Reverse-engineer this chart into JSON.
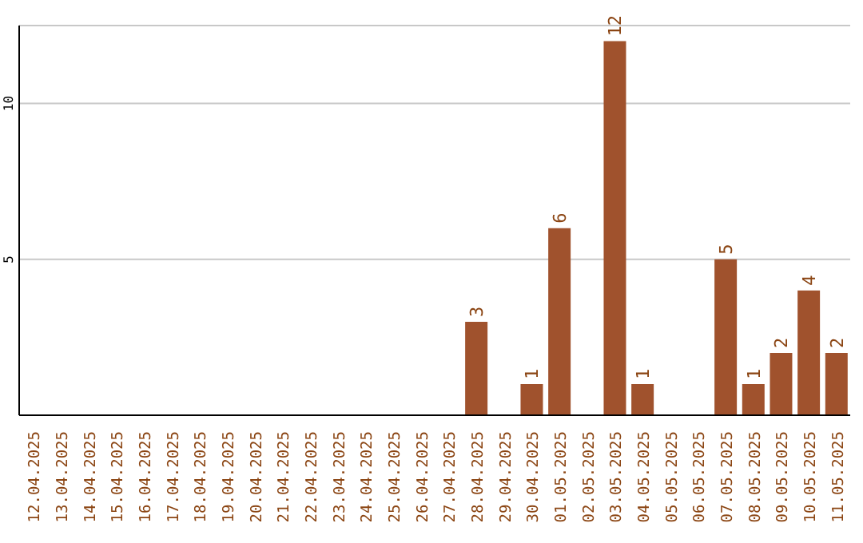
{
  "chart_data": {
    "type": "bar",
    "categories": [
      "12.04.2025",
      "13.04.2025",
      "14.04.2025",
      "15.04.2025",
      "16.04.2025",
      "17.04.2025",
      "18.04.2025",
      "19.04.2025",
      "20.04.2025",
      "21.04.2025",
      "22.04.2025",
      "23.04.2025",
      "24.04.2025",
      "25.04.2025",
      "26.04.2025",
      "27.04.2025",
      "28.04.2025",
      "29.04.2025",
      "30.04.2025",
      "01.05.2025",
      "02.05.2025",
      "03.05.2025",
      "04.05.2025",
      "05.05.2025",
      "06.05.2025",
      "07.05.2025",
      "08.05.2025",
      "09.05.2025",
      "10.05.2025",
      "11.05.2025"
    ],
    "values": [
      0,
      0,
      0,
      0,
      0,
      0,
      0,
      0,
      0,
      0,
      0,
      0,
      0,
      0,
      0,
      0,
      3,
      0,
      1,
      6,
      0,
      12,
      1,
      0,
      0,
      5,
      1,
      2,
      4,
      2
    ],
    "value_labels": [
      null,
      null,
      null,
      null,
      null,
      null,
      null,
      null,
      null,
      null,
      null,
      null,
      null,
      null,
      null,
      null,
      "3",
      null,
      "1",
      "6",
      null,
      "12",
      "1",
      null,
      null,
      "5",
      "1",
      "2",
      "4",
      "2"
    ],
    "color": "#a0522d",
    "ylim": [
      0,
      12.5
    ],
    "yticks": [
      5,
      10
    ],
    "grid": "y"
  }
}
